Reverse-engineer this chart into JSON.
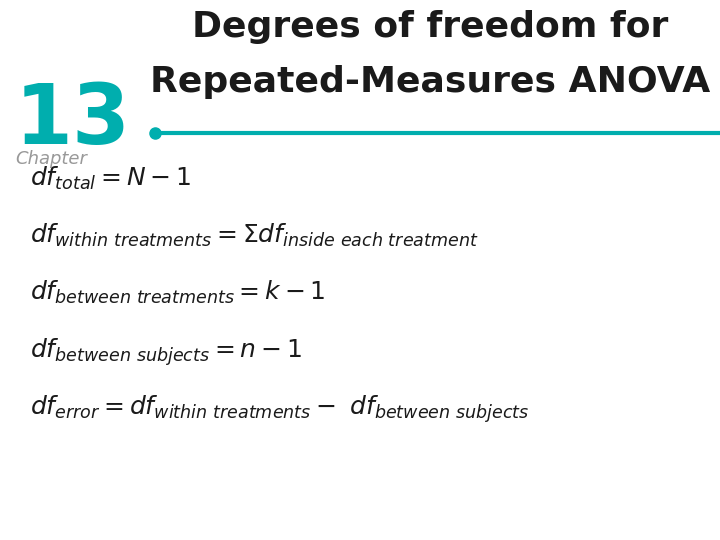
{
  "title_line1": "Degrees of freedom for",
  "title_line2": "Repeated-Measures ANOVA",
  "chapter_number": "13",
  "chapter_label": "Chapter",
  "teal_color": "#00AEAE",
  "title_color": "#1a1a1a",
  "bg_color": "#ffffff",
  "line_color": "#00AEAE",
  "formula_color": "#1a1a1a",
  "title_fontsize": 26,
  "chapter_num_fontsize": 60,
  "chapter_label_fontsize": 13,
  "formula_fontsize": 18
}
